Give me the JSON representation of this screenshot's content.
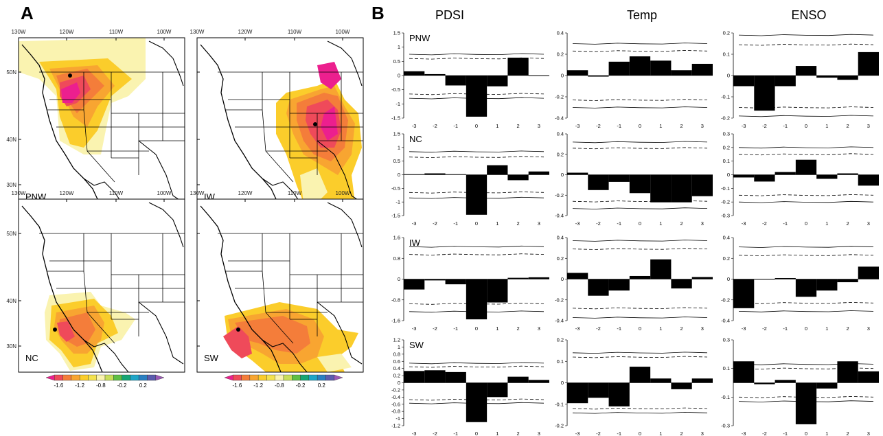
{
  "panel_labels": {
    "a": "A",
    "b": "B"
  },
  "maps": {
    "lon_labels": [
      "130W",
      "120W",
      "110W",
      "100W"
    ],
    "lat_labels": [
      "50N",
      "40N",
      "30N"
    ],
    "colorbar": {
      "ticks": [
        "-1.6",
        "-1.2",
        "-0.8",
        "-0.2",
        "0.2"
      ],
      "colors": [
        "#ec1f8e",
        "#ef4a5a",
        "#f47d3a",
        "#f8a531",
        "#fbcd2b",
        "#f4e24e",
        "#faf3b0",
        "#c9de5a",
        "#5fbf45",
        "#16a574",
        "#1fa5c7",
        "#2a7fc1",
        "#5b5cae",
        "#9b59b6"
      ]
    },
    "panels": [
      {
        "id": "PNW",
        "label": "PNW"
      },
      {
        "id": "IW",
        "label": "IW"
      },
      {
        "id": "NC",
        "label": "NC"
      },
      {
        "id": "SW",
        "label": "SW"
      }
    ]
  },
  "chart_data": {
    "type": "bar",
    "description_columns": [
      "PDSI",
      "Temp",
      "ENSO"
    ],
    "x": [
      -3,
      -2,
      -1,
      0,
      1,
      2,
      3
    ],
    "xticklabels": [
      "-3",
      "-2",
      "-1",
      "0",
      "1",
      "2",
      "3"
    ],
    "rows": [
      {
        "region": "PNW",
        "PDSI": {
          "values": [
            0.15,
            0.05,
            -0.35,
            -1.45,
            -0.38,
            0.63,
            -0.02
          ],
          "ylim": [
            -1.5,
            1.5
          ],
          "yticks": [
            "1.5",
            "1",
            "0.5",
            "0",
            "-0.5",
            "-1",
            "-1.5"
          ],
          "upper99": 0.75,
          "upper95": 0.6,
          "lower95": -0.65,
          "lower99": -0.8
        },
        "Temp": {
          "values": [
            0.05,
            -0.01,
            0.13,
            0.18,
            0.14,
            0.05,
            0.11
          ],
          "ylim": [
            -0.4,
            0.4
          ],
          "yticks": [
            "0.4",
            "0.2",
            "0",
            "-0.2",
            "-0.4"
          ],
          "upper99": 0.3,
          "upper95": 0.23,
          "lower95": -0.23,
          "lower99": -0.3
        },
        "ENSO": {
          "values": [
            -0.05,
            -0.165,
            -0.05,
            0.045,
            -0.01,
            -0.02,
            0.11
          ],
          "ylim": [
            -0.2,
            0.2
          ],
          "yticks": [
            "0.2",
            "0.1",
            "0",
            "-0.1",
            "-0.2"
          ],
          "upper99": 0.19,
          "upper95": 0.145,
          "lower95": -0.15,
          "lower99": -0.19
        }
      },
      {
        "region": "NC",
        "PDSI": {
          "values": [
            0.02,
            0.05,
            0.02,
            -1.47,
            0.35,
            -0.2,
            0.12
          ],
          "ylim": [
            -1.5,
            1.5
          ],
          "yticks": [
            "1.5",
            "1",
            "0.5",
            "0",
            "-0.5",
            "-1",
            "-1.5"
          ],
          "upper99": 0.85,
          "upper95": 0.65,
          "lower95": -0.65,
          "lower99": -0.85
        },
        "Temp": {
          "values": [
            0.02,
            -0.15,
            -0.07,
            -0.18,
            -0.27,
            -0.27,
            -0.21
          ],
          "ylim": [
            -0.4,
            0.4
          ],
          "yticks": [
            "0.4",
            "0.2",
            "0",
            "-0.2",
            "-0.4"
          ],
          "upper99": 0.32,
          "upper95": 0.26,
          "lower95": -0.26,
          "lower99": -0.33
        },
        "ENSO": {
          "values": [
            -0.02,
            -0.05,
            0.02,
            0.11,
            -0.03,
            0.01,
            -0.08
          ],
          "ylim": [
            -0.3,
            0.3
          ],
          "yticks": [
            "0.3",
            "0.2",
            "0.1",
            "0",
            "-0.1",
            "-0.2",
            "-0.3"
          ],
          "upper99": 0.2,
          "upper95": 0.15,
          "lower95": -0.15,
          "lower99": -0.2
        }
      },
      {
        "region": "IW",
        "PDSI": {
          "values": [
            -0.4,
            -0.05,
            -0.2,
            -1.55,
            -0.9,
            0.05,
            0.07
          ],
          "ylim": [
            -1.6,
            1.6
          ],
          "yticks": [
            "1.6",
            "0.8",
            "0",
            "-0.8",
            "-1.6"
          ],
          "upper99": 1.25,
          "upper95": 0.95,
          "lower95": -0.95,
          "lower99": -1.25
        },
        "Temp": {
          "values": [
            0.06,
            -0.16,
            -0.11,
            0.03,
            0.19,
            -0.09,
            0.02
          ],
          "ylim": [
            -0.4,
            0.4
          ],
          "yticks": [
            "0.4",
            "0.2",
            "0",
            "-0.2",
            "-0.4"
          ],
          "upper99": 0.37,
          "upper95": 0.29,
          "lower95": -0.28,
          "lower99": -0.37
        },
        "ENSO": {
          "values": [
            -0.28,
            0.0,
            0.01,
            -0.17,
            -0.11,
            -0.03,
            0.12
          ],
          "ylim": [
            -0.4,
            0.4
          ],
          "yticks": [
            "0.4",
            "0.2",
            "0",
            "-0.2",
            "-0.4"
          ],
          "upper99": 0.31,
          "upper95": 0.23,
          "lower95": -0.23,
          "lower99": -0.31
        }
      },
      {
        "region": "SW",
        "PDSI": {
          "values": [
            0.33,
            0.35,
            0.3,
            -1.1,
            -0.4,
            0.17,
            0.08
          ],
          "ylim": [
            -1.2,
            1.2
          ],
          "yticks": [
            "1.2",
            "1",
            "0.8",
            "0.6",
            "0.4",
            "0.2",
            "0",
            "-0.2",
            "-0.4",
            "-0.6",
            "-0.8",
            "-1",
            "-1.2"
          ],
          "upper99": 0.55,
          "upper95": 0.45,
          "lower95": -0.47,
          "lower99": -0.57
        },
        "Temp": {
          "values": [
            -0.095,
            -0.07,
            -0.11,
            0.075,
            0.02,
            -0.03,
            0.02
          ],
          "ylim": [
            -0.2,
            0.2
          ],
          "yticks": [
            "0.2",
            "0.1",
            "0",
            "-0.1",
            "-0.2"
          ],
          "upper99": 0.14,
          "upper95": 0.12,
          "lower95": -0.12,
          "lower99": -0.14
        },
        "ENSO": {
          "values": [
            0.15,
            -0.01,
            0.02,
            -0.29,
            -0.04,
            0.15,
            0.08
          ],
          "ylim": [
            -0.3,
            0.3
          ],
          "yticks": [
            "0.3",
            "0.1",
            "-0.1",
            "-0.3"
          ],
          "upper99": 0.13,
          "upper95": 0.1,
          "lower95": -0.1,
          "lower99": -0.13
        }
      }
    ]
  }
}
